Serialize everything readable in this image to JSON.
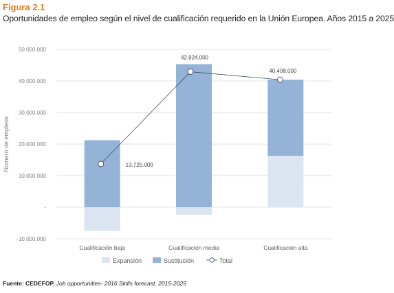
{
  "figure": {
    "label": "Figura 2.1",
    "title": "Oportunidades de empleo según el nivel de cualificación requerido en la Unión Europea. Años 2015 a 2025"
  },
  "source": {
    "prefix": "Fuente: CEDEFOP.",
    "text": "Job opportunities- 2016 Skills forecast, 2015-2025"
  },
  "colors": {
    "expansion": "#dbe5f1",
    "substitution": "#95b3d7",
    "total_line": "#3b4a6b",
    "axis_text": "#7f7f7f",
    "gridline": "#d9d9d9"
  },
  "chart_data": {
    "type": "bar",
    "stacked": true,
    "categories": [
      "Cualificación baja",
      "Cualificación media",
      "Cualificación alta"
    ],
    "series": [
      {
        "name": "Expansión",
        "kind": "bar",
        "values": [
          -7500000,
          -2400000,
          16300000
        ]
      },
      {
        "name": "Sustitución",
        "kind": "bar",
        "values": [
          21225000,
          45324000,
          24108000
        ]
      },
      {
        "name": "Total",
        "kind": "line-marker",
        "values": [
          13725000,
          42924000,
          40408000
        ]
      }
    ],
    "data_labels": [
      "13.725.000",
      "42.924.000",
      "40.408.000"
    ],
    "ylabel": "Número de empleos",
    "ylim": [
      -10000000,
      50000000
    ],
    "yticks": [
      50000000,
      40000000,
      30000000,
      20000000,
      10000000,
      0,
      -10000000
    ],
    "ytick_labels": [
      "50.000.000",
      "40.000.000",
      "30.000.000",
      "20.000.000",
      "10.000.000",
      "-",
      "-10.000.000"
    ],
    "grid": true,
    "legend": "bottom"
  }
}
